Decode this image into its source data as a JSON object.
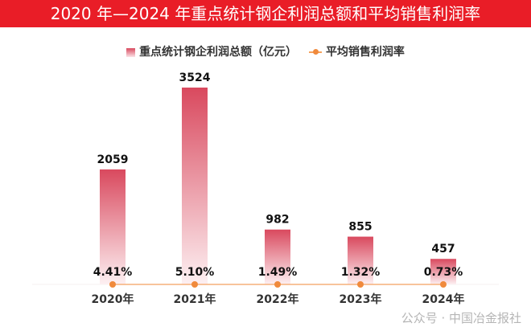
{
  "title": "2020 年—2024 年重点统计钢企利润总额和平均销售利润率",
  "legend": {
    "bar": "重点统计钢企利润总额（亿元）",
    "line": "平均销售利润率"
  },
  "watermark": "公众号 · 中国冶金报社",
  "colors": {
    "title_bg": "#e91d27",
    "bar": "#d9495e",
    "line": "#f08a3c"
  },
  "chart_data": {
    "type": "bar",
    "title": "2020 年—2024 年重点统计钢企利润总额和平均销售利润率",
    "categories": [
      "2020年",
      "2021年",
      "2022年",
      "2023年",
      "2024年"
    ],
    "series": [
      {
        "name": "重点统计钢企利润总额（亿元）",
        "type": "bar",
        "values": [
          2059,
          3524,
          982,
          855,
          457
        ],
        "labels": [
          "2059",
          "3524",
          "982",
          "855",
          "457"
        ]
      },
      {
        "name": "平均销售利润率",
        "type": "line",
        "values": [
          4.41,
          5.1,
          1.49,
          1.32,
          0.73
        ],
        "labels": [
          "4.41%",
          "5.10%",
          "1.49%",
          "1.32%",
          "0.73%"
        ]
      }
    ],
    "grid": false,
    "legend_position": "top-center"
  }
}
